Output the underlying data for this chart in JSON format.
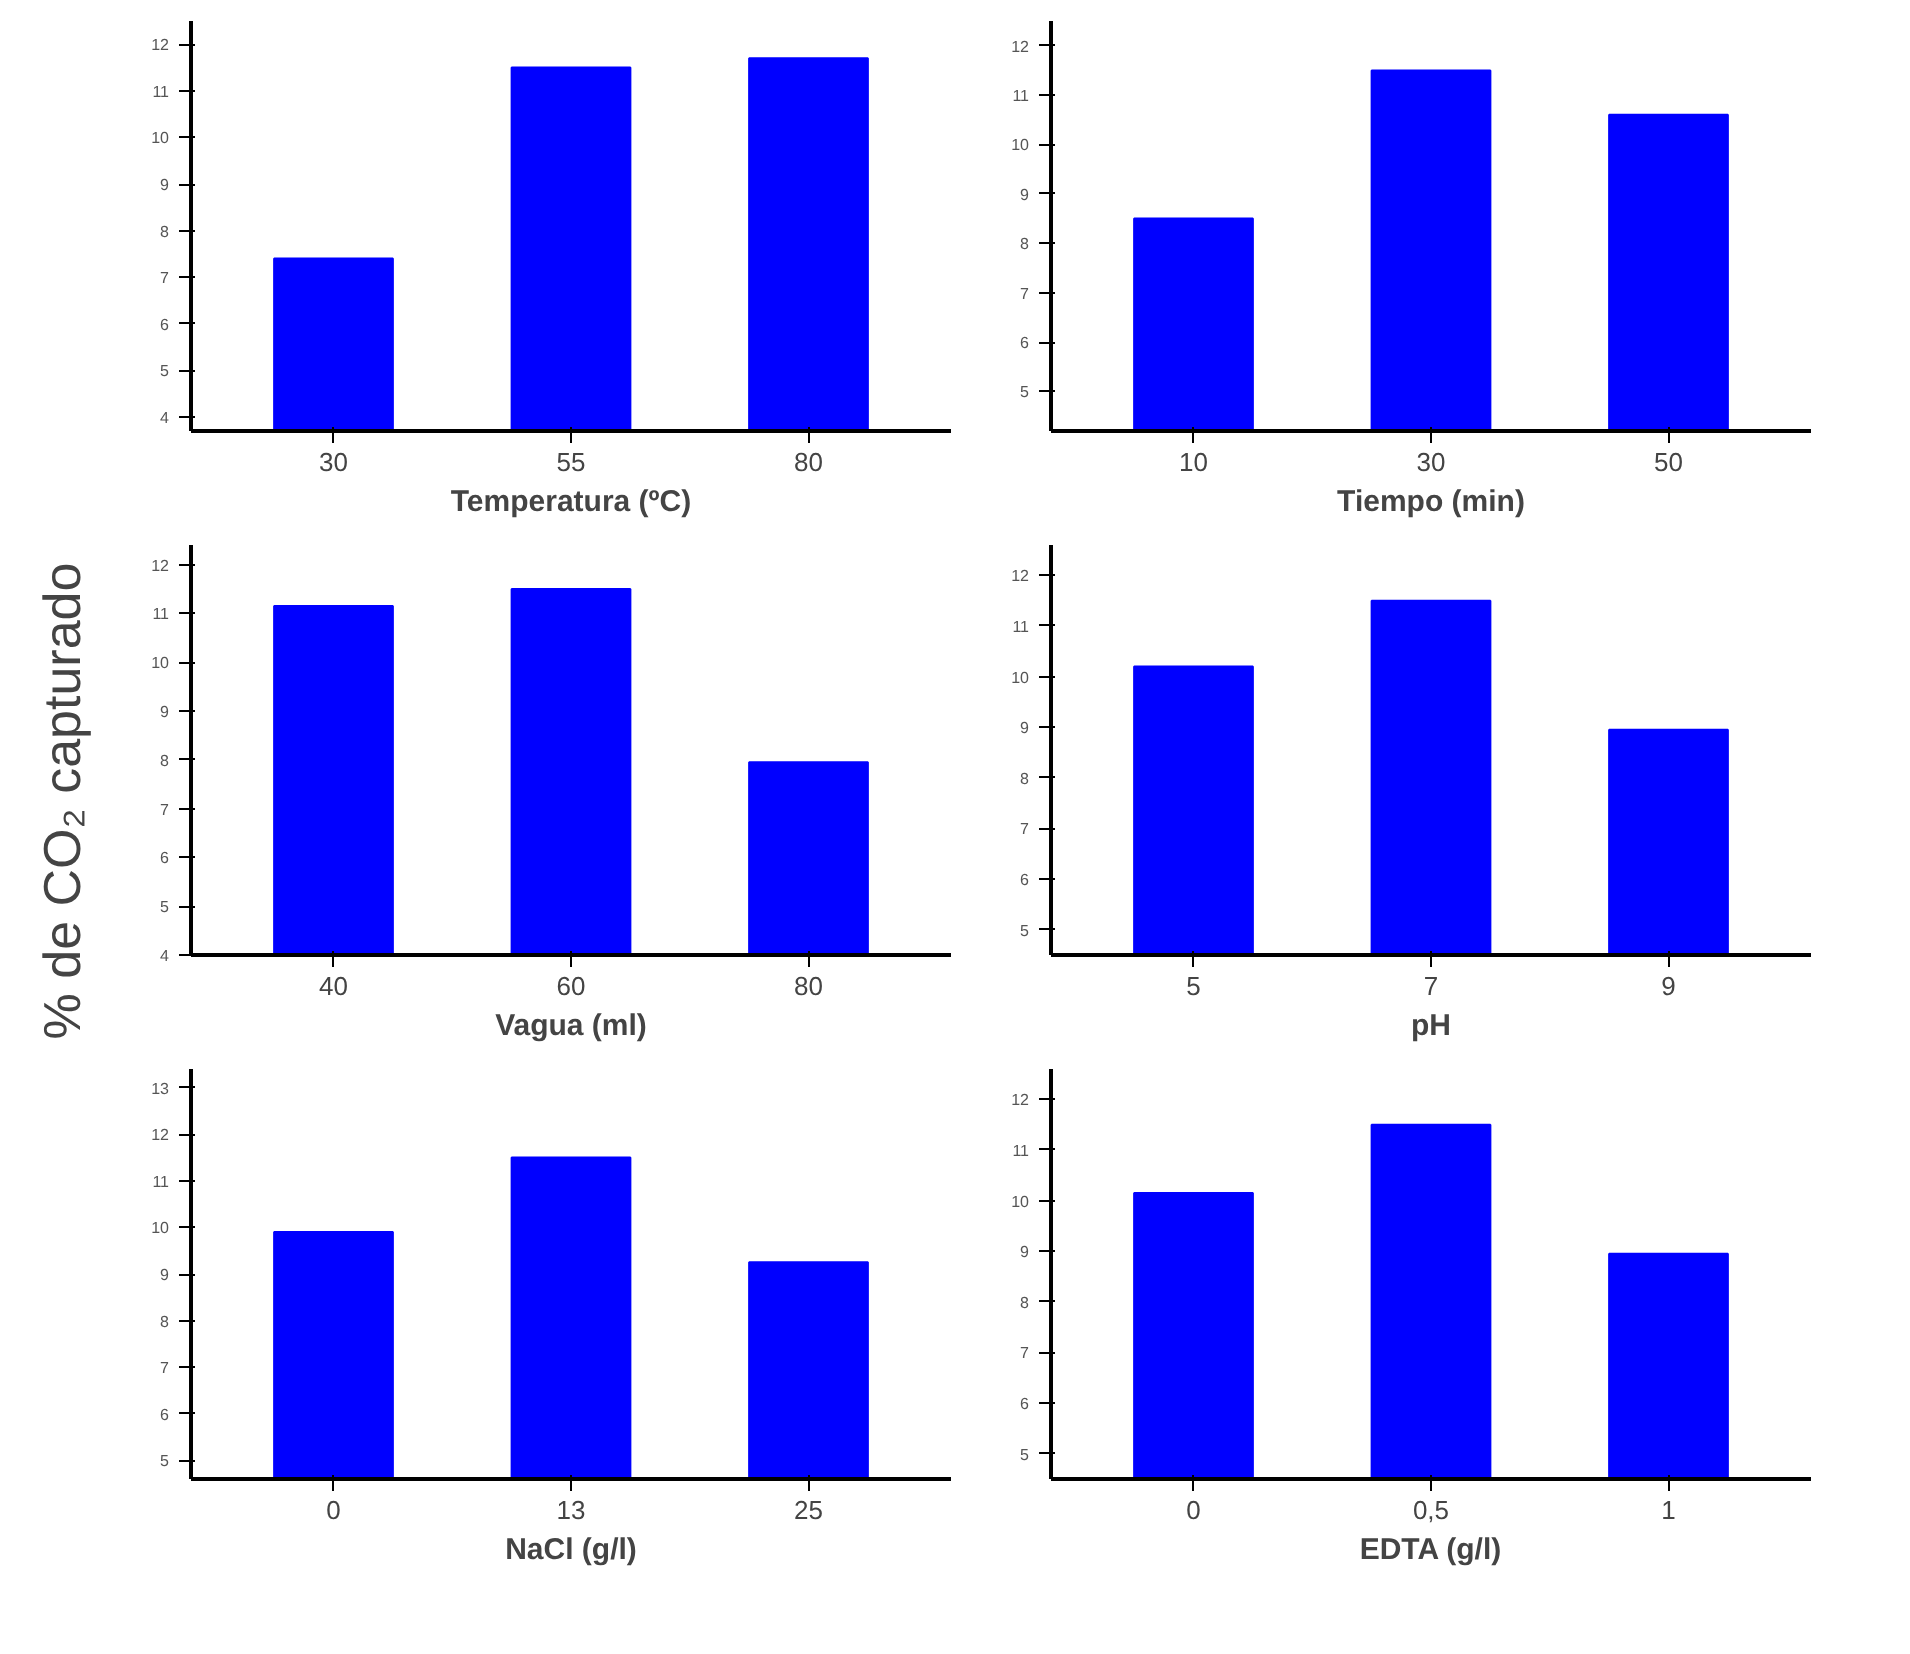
{
  "chart_data": [
    {
      "type": "bar",
      "xlabel": "Temperatura (ºC)",
      "ylabel": "% de CO₂ capturado",
      "categories": [
        "30",
        "55",
        "80"
      ],
      "values": [
        7.4,
        11.5,
        11.7
      ],
      "color": "#0000ff",
      "ylim": [
        3.7,
        12.5
      ],
      "yticks": [
        4,
        5,
        6,
        7,
        8,
        9,
        10,
        11,
        12
      ],
      "grid": false
    },
    {
      "type": "bar",
      "xlabel": "Tiempo (min)",
      "categories": [
        "10",
        "30",
        "50"
      ],
      "values": [
        8.5,
        11.5,
        10.6
      ],
      "color": "#0000ff",
      "ylim": [
        4.2,
        12.5
      ],
      "yticks": [
        5,
        6,
        7,
        8,
        9,
        10,
        11,
        12
      ],
      "grid": false
    },
    {
      "type": "bar",
      "xlabel": "Vagua (ml)",
      "categories": [
        "40",
        "60",
        "80"
      ],
      "values": [
        11.15,
        11.5,
        7.95
      ],
      "color": "#0000ff",
      "ylim": [
        4,
        12.4
      ],
      "yticks": [
        4,
        5,
        6,
        7,
        8,
        9,
        10,
        11,
        12
      ],
      "grid": false
    },
    {
      "type": "bar",
      "xlabel": "pH",
      "categories": [
        "5",
        "7",
        "9"
      ],
      "values": [
        10.2,
        11.5,
        8.95
      ],
      "color": "#0000ff",
      "ylim": [
        4.5,
        12.6
      ],
      "yticks": [
        5,
        6,
        7,
        8,
        9,
        10,
        11,
        12
      ],
      "grid": false
    },
    {
      "type": "bar",
      "xlabel": "NaCl (g/l)",
      "categories": [
        "0",
        "13",
        "25"
      ],
      "values": [
        9.9,
        11.5,
        9.25
      ],
      "color": "#0000ff",
      "ylim": [
        4.6,
        13.4
      ],
      "yticks": [
        5,
        6,
        7,
        8,
        9,
        10,
        11,
        12,
        13
      ],
      "grid": false
    },
    {
      "type": "bar",
      "xlabel": "EDTA (g/l)",
      "categories": [
        "0",
        "0,5",
        "1"
      ],
      "values": [
        10.15,
        11.5,
        8.95
      ],
      "color": "#0000ff",
      "ylim": [
        4.5,
        12.6
      ],
      "yticks": [
        5,
        6,
        7,
        8,
        9,
        10,
        11,
        12
      ],
      "grid": false
    }
  ]
}
